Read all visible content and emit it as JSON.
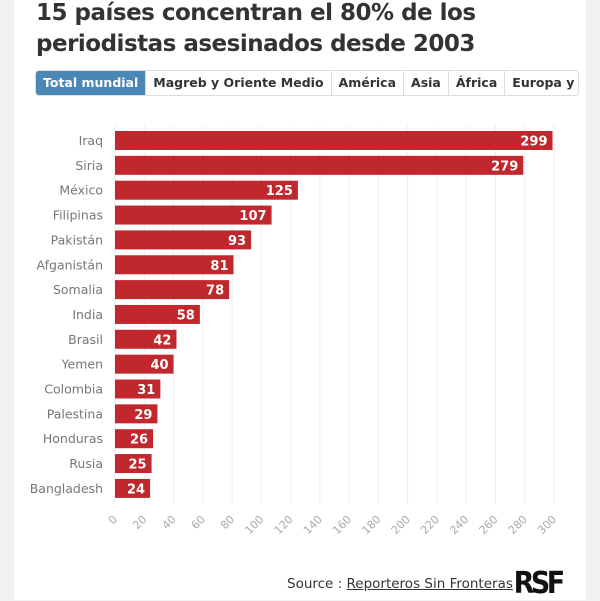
{
  "title": "15 países concentran el 80% de los periodistas asesinados desde 2003",
  "tabs": [
    {
      "label": "Total mundial",
      "active": true
    },
    {
      "label": "Magreb y Oriente Medio"
    },
    {
      "label": "América"
    },
    {
      "label": "Asia"
    },
    {
      "label": "África"
    },
    {
      "label": "Europa y Asia Centr"
    }
  ],
  "source": {
    "prefix": "Source : ",
    "link": "Reporteros Sin Fronteras",
    "logo": "RSF"
  },
  "colors": {
    "bar": "#c0282d",
    "active_tab": "#4a87b5"
  },
  "chart_data": {
    "type": "bar",
    "orientation": "horizontal",
    "categories": [
      "Iraq",
      "Siria",
      "México",
      "Filipinas",
      "Pakistán",
      "Afganistán",
      "Somalia",
      "India",
      "Brasil",
      "Yemen",
      "Colombia",
      "Palestina",
      "Honduras",
      "Rusia",
      "Bangladesh"
    ],
    "values": [
      299,
      279,
      125,
      107,
      93,
      81,
      78,
      58,
      42,
      40,
      31,
      29,
      26,
      25,
      24
    ],
    "xlim": [
      0,
      300
    ],
    "ticks": [
      0,
      20,
      40,
      60,
      80,
      100,
      120,
      140,
      160,
      180,
      200,
      220,
      240,
      260,
      280,
      300
    ],
    "grid": true,
    "data_labels": true
  }
}
